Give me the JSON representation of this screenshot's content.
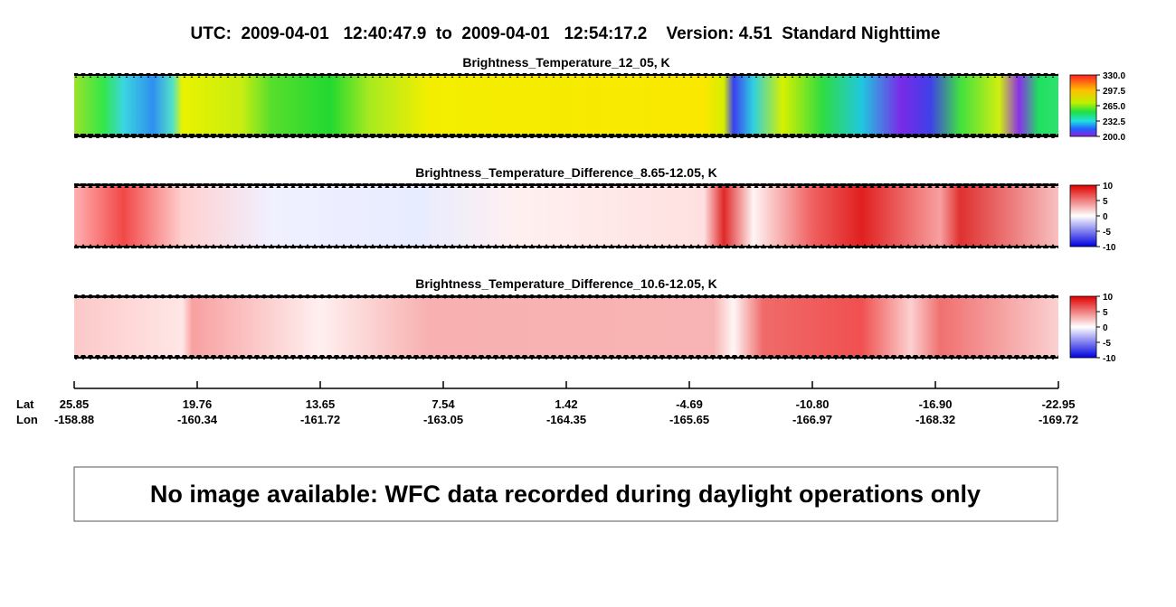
{
  "header": {
    "title": "UTC:  2009-04-01   12:40:47.9  to  2009-04-01   12:54:17.2    Version: 4.51  Standard Nighttime"
  },
  "panels": [
    {
      "title": "Brightness_Temperature_12_05, K",
      "colorbar_ticks": [
        "330.0",
        "297.5",
        "265.0",
        "232.5",
        "200.0"
      ]
    },
    {
      "title": "Brightness_Temperature_Difference_8.65-12.05, K",
      "colorbar_ticks": [
        "10",
        "5",
        "0",
        "-5",
        "-10"
      ]
    },
    {
      "title": "Brightness_Temperature_Difference_10.6-12.05, K",
      "colorbar_ticks": [
        "10",
        "5",
        "0",
        "-5",
        "-10"
      ]
    }
  ],
  "axis": {
    "lat_label": "Lat",
    "lon_label": "Lon",
    "lat": [
      "25.85",
      "19.76",
      "13.65",
      "7.54",
      "1.42",
      "-4.69",
      "-10.80",
      "-16.90",
      "-22.95"
    ],
    "lon": [
      "-158.88",
      "-160.34",
      "-161.72",
      "-163.05",
      "-164.35",
      "-165.65",
      "-166.97",
      "-168.32",
      "-169.72"
    ]
  },
  "notice": "No image available: WFC data recorded during daylight operations only"
}
